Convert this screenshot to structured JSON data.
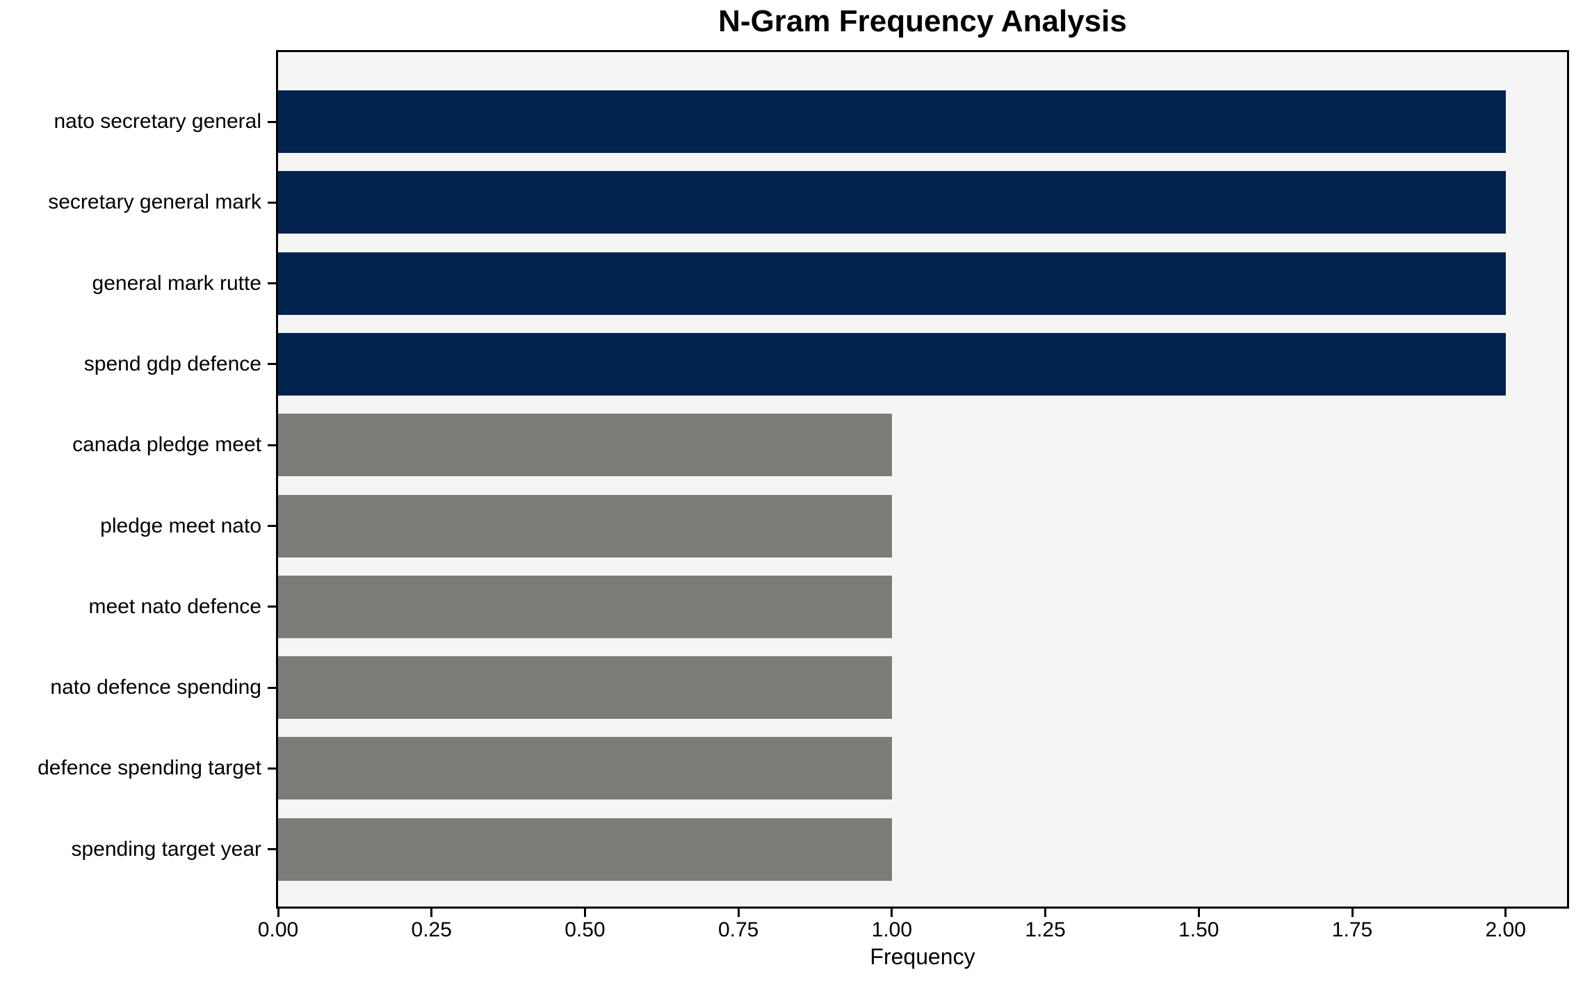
{
  "chart_data": {
    "type": "bar",
    "orientation": "horizontal",
    "title": "N-Gram Frequency Analysis",
    "xlabel": "Frequency",
    "ylabel": "",
    "categories": [
      "nato secretary general",
      "secretary general mark",
      "general mark rutte",
      "spend gdp defence",
      "canada pledge meet",
      "pledge meet nato",
      "meet nato defence",
      "nato defence spending",
      "defence spending target",
      "spending target year"
    ],
    "values": [
      2,
      2,
      2,
      2,
      1,
      1,
      1,
      1,
      1,
      1
    ],
    "bar_colors": [
      "#02234e",
      "#02234e",
      "#02234e",
      "#02234e",
      "#7b7b78",
      "#7b7b78",
      "#7b7b78",
      "#7b7b78",
      "#7b7b78",
      "#7b7b78"
    ],
    "xlim": [
      0,
      2.1
    ],
    "xticks": [
      0,
      0.25,
      0.5,
      0.75,
      1.0,
      1.25,
      1.5,
      1.75,
      2.0
    ],
    "xtick_labels": [
      "0.00",
      "0.25",
      "0.50",
      "0.75",
      "1.00",
      "1.25",
      "1.50",
      "1.75",
      "2.00"
    ],
    "grid": false,
    "legend": null,
    "colors": {
      "navy_bar": "#02234e",
      "gray_bar": "#7b7b78",
      "axes_facecolor": "#f5f5f5",
      "figure_facecolor": "#ffffff",
      "spine_color": "#000000",
      "text_color": "#000000"
    }
  }
}
